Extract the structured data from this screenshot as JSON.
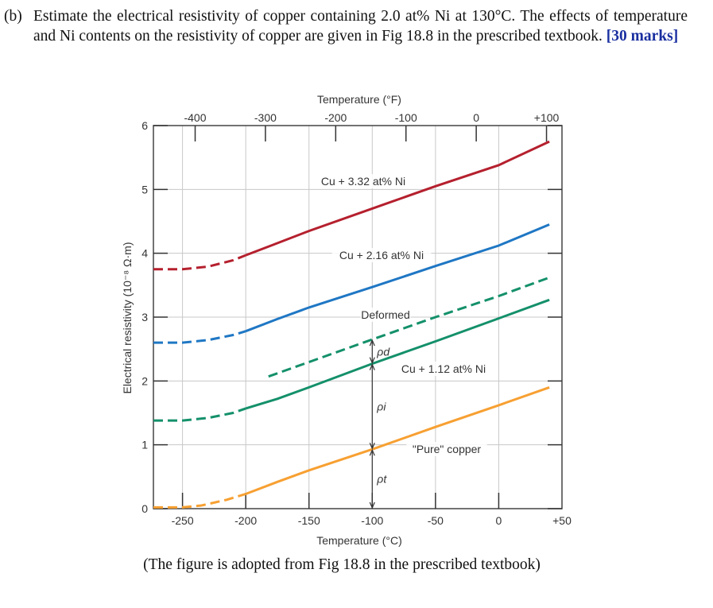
{
  "question": {
    "label": "(b)",
    "text": "Estimate the electrical resistivity of copper containing 2.0 at% Ni at 130°C.  The effects of temperature and Ni contents on the resistivity of copper are given in Fig 18.8 in the prescribed textbook.",
    "marks": "[30 marks]"
  },
  "caption": "(The figure is adopted from Fig 18.8 in the prescribed textbook)",
  "chart_data": {
    "type": "line",
    "xlabel": "Temperature (°C)",
    "x2label": "Temperature (°F)",
    "ylabel": "Electrical resistivity (10⁻⁸ Ω·m)",
    "xlim": [
      -273,
      50
    ],
    "ylim": [
      0,
      6
    ],
    "xticks": [
      "-250",
      "-200",
      "-150",
      "-100",
      "-50",
      "0",
      "+50"
    ],
    "xtick_values": [
      -250,
      -200,
      -150,
      -100,
      -50,
      0,
      50
    ],
    "x2ticks": [
      "-400",
      "-300",
      "-200",
      "-100",
      "0",
      "+100"
    ],
    "x2tick_values": [
      -400,
      -300,
      -200,
      -100,
      0,
      100
    ],
    "yticks": [
      "0",
      "1",
      "2",
      "3",
      "4",
      "5",
      "6"
    ],
    "grid": true,
    "series": [
      {
        "name": "Cu + 3.32 at% Ni",
        "color": "#b5202e",
        "dashed": [
          [
            -273,
            3.75
          ],
          [
            -250,
            3.75
          ],
          [
            -230,
            3.79
          ],
          [
            -210,
            3.89
          ],
          [
            -200,
            3.97
          ]
        ],
        "solid": [
          [
            -200,
            3.97
          ],
          [
            -180,
            4.12
          ],
          [
            -150,
            4.35
          ],
          [
            -100,
            4.7
          ],
          [
            -50,
            5.05
          ],
          [
            0,
            5.38
          ],
          [
            40,
            5.75
          ]
        ]
      },
      {
        "name": "Cu + 2.16 at% Ni",
        "color": "#1f77c4",
        "dashed": [
          [
            -273,
            2.6
          ],
          [
            -250,
            2.6
          ],
          [
            -230,
            2.64
          ],
          [
            -210,
            2.72
          ],
          [
            -200,
            2.78
          ]
        ],
        "solid": [
          [
            -200,
            2.78
          ],
          [
            -175,
            2.97
          ],
          [
            -150,
            3.15
          ],
          [
            -100,
            3.47
          ],
          [
            -50,
            3.8
          ],
          [
            0,
            4.12
          ],
          [
            40,
            4.45
          ]
        ]
      },
      {
        "name": "Deformed",
        "color": "#14906a",
        "dashed": [
          [
            -182,
            2.07
          ],
          [
            -100,
            2.65
          ],
          [
            -50,
            3.0
          ],
          [
            0,
            3.33
          ],
          [
            40,
            3.62
          ]
        ],
        "solid": []
      },
      {
        "name": "Cu + 1.12 at% Ni",
        "color": "#14906a",
        "dashed": [
          [
            -273,
            1.38
          ],
          [
            -250,
            1.38
          ],
          [
            -230,
            1.42
          ],
          [
            -210,
            1.5
          ],
          [
            -200,
            1.57
          ]
        ],
        "solid": [
          [
            -200,
            1.57
          ],
          [
            -175,
            1.72
          ],
          [
            -150,
            1.9
          ],
          [
            -100,
            2.27
          ],
          [
            -50,
            2.62
          ],
          [
            0,
            2.98
          ],
          [
            40,
            3.27
          ]
        ]
      },
      {
        "name": "\"Pure\" copper",
        "color": "#f7a032",
        "dashed": [
          [
            -273,
            0.02
          ],
          [
            -250,
            0.02
          ],
          [
            -235,
            0.05
          ],
          [
            -215,
            0.14
          ],
          [
            -200,
            0.23
          ]
        ],
        "solid": [
          [
            -200,
            0.23
          ],
          [
            -175,
            0.42
          ],
          [
            -150,
            0.6
          ],
          [
            -100,
            0.93
          ],
          [
            -50,
            1.28
          ],
          [
            0,
            1.62
          ],
          [
            40,
            1.9
          ]
        ]
      }
    ],
    "annotations": [
      {
        "text": "ρt",
        "x": -100,
        "from": 0,
        "to": 0.93
      },
      {
        "text": "ρi",
        "x": -100,
        "from": 0.93,
        "to": 2.27
      },
      {
        "text": "ρd",
        "x": -100,
        "from": 2.27,
        "to": 2.65
      }
    ]
  }
}
